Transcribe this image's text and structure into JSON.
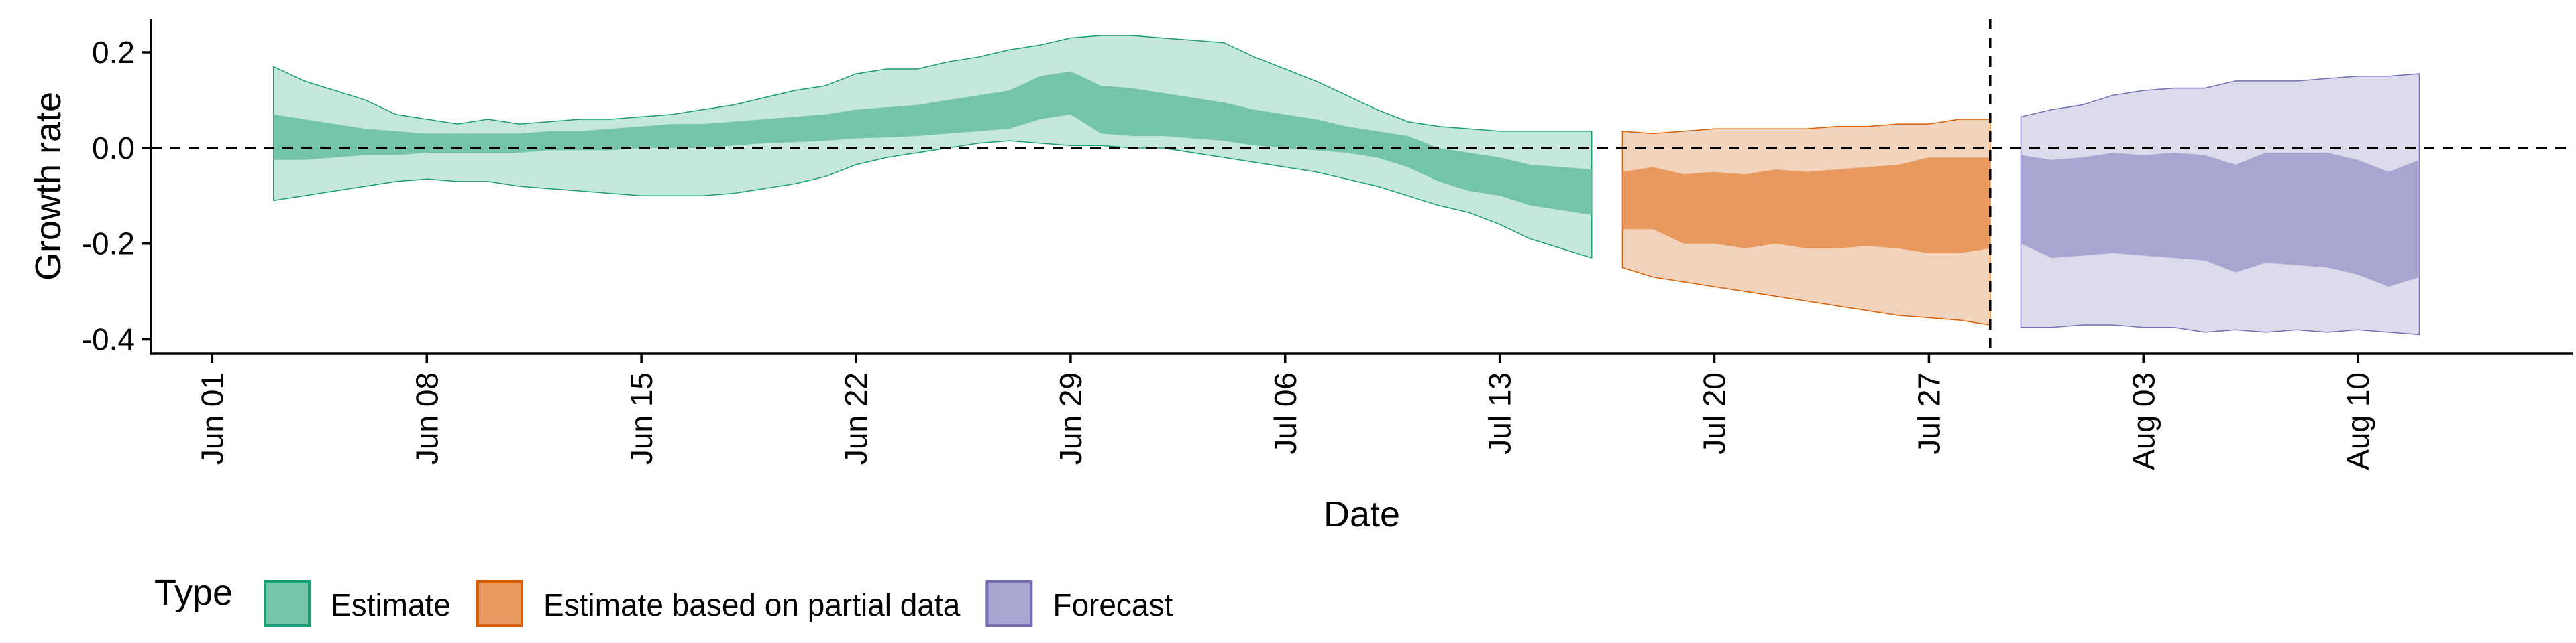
{
  "chart_data": {
    "type": "area",
    "xlabel": "Date",
    "ylabel": "Growth rate",
    "ylim": [
      -0.43,
      0.27
    ],
    "xlim": [
      "2020-05-30",
      "2020-08-17"
    ],
    "grid": false,
    "reference_lines": {
      "horizontal": 0.0,
      "vertical": "2020-07-29"
    },
    "y_ticks": [
      {
        "value": 0.2,
        "label": "0.2"
      },
      {
        "value": 0.0,
        "label": "0.0"
      },
      {
        "value": -0.2,
        "label": "-0.2"
      },
      {
        "value": -0.4,
        "label": "-0.4"
      }
    ],
    "x_ticks": [
      {
        "date": "2020-06-01",
        "label": "Jun 01"
      },
      {
        "date": "2020-06-08",
        "label": "Jun 08"
      },
      {
        "date": "2020-06-15",
        "label": "Jun 15"
      },
      {
        "date": "2020-06-22",
        "label": "Jun 22"
      },
      {
        "date": "2020-06-29",
        "label": "Jun 29"
      },
      {
        "date": "2020-07-06",
        "label": "Jul 06"
      },
      {
        "date": "2020-07-13",
        "label": "Jul 13"
      },
      {
        "date": "2020-07-20",
        "label": "Jul 20"
      },
      {
        "date": "2020-07-27",
        "label": "Jul 27"
      },
      {
        "date": "2020-08-03",
        "label": "Aug 03"
      },
      {
        "date": "2020-08-10",
        "label": "Aug 10"
      }
    ],
    "legend": {
      "title": "Type",
      "position": "bottom-left",
      "entries": [
        {
          "label": "Estimate",
          "fill": "#73c4a8",
          "stroke": "#1b9e77"
        },
        {
          "label": "Estimate based on partial data",
          "fill": "#e89a5e",
          "stroke": "#d95f02"
        },
        {
          "label": "Forecast",
          "fill": "#a9a5d1",
          "stroke": "#7570b3"
        }
      ]
    },
    "series": [
      {
        "name": "Estimate",
        "outer_fill": "#c5e7dc",
        "inner_fill": "#73c4a8",
        "stroke": "#1b9e77",
        "points": [
          {
            "x": "2020-06-03",
            "lo90": -0.11,
            "hi90": 0.17,
            "lo50": -0.025,
            "hi50": 0.07
          },
          {
            "x": "2020-06-04",
            "lo90": -0.1,
            "hi90": 0.14,
            "lo50": -0.025,
            "hi50": 0.06
          },
          {
            "x": "2020-06-05",
            "lo90": -0.09,
            "hi90": 0.12,
            "lo50": -0.02,
            "hi50": 0.05
          },
          {
            "x": "2020-06-06",
            "lo90": -0.08,
            "hi90": 0.1,
            "lo50": -0.015,
            "hi50": 0.04
          },
          {
            "x": "2020-06-07",
            "lo90": -0.07,
            "hi90": 0.07,
            "lo50": -0.015,
            "hi50": 0.035
          },
          {
            "x": "2020-06-08",
            "lo90": -0.065,
            "hi90": 0.06,
            "lo50": -0.01,
            "hi50": 0.03
          },
          {
            "x": "2020-06-09",
            "lo90": -0.07,
            "hi90": 0.05,
            "lo50": -0.01,
            "hi50": 0.03
          },
          {
            "x": "2020-06-10",
            "lo90": -0.07,
            "hi90": 0.06,
            "lo50": -0.01,
            "hi50": 0.03
          },
          {
            "x": "2020-06-11",
            "lo90": -0.08,
            "hi90": 0.05,
            "lo50": -0.01,
            "hi50": 0.03
          },
          {
            "x": "2020-06-12",
            "lo90": -0.085,
            "hi90": 0.055,
            "lo50": -0.005,
            "hi50": 0.035
          },
          {
            "x": "2020-06-13",
            "lo90": -0.09,
            "hi90": 0.06,
            "lo50": -0.005,
            "hi50": 0.035
          },
          {
            "x": "2020-06-14",
            "lo90": -0.095,
            "hi90": 0.06,
            "lo50": -0.005,
            "hi50": 0.04
          },
          {
            "x": "2020-06-15",
            "lo90": -0.1,
            "hi90": 0.065,
            "lo50": 0.0,
            "hi50": 0.045
          },
          {
            "x": "2020-06-16",
            "lo90": -0.1,
            "hi90": 0.07,
            "lo50": 0.0,
            "hi50": 0.05
          },
          {
            "x": "2020-06-17",
            "lo90": -0.1,
            "hi90": 0.08,
            "lo50": 0.0,
            "hi50": 0.05
          },
          {
            "x": "2020-06-18",
            "lo90": -0.095,
            "hi90": 0.09,
            "lo50": 0.005,
            "hi50": 0.055
          },
          {
            "x": "2020-06-19",
            "lo90": -0.085,
            "hi90": 0.105,
            "lo50": 0.01,
            "hi50": 0.06
          },
          {
            "x": "2020-06-20",
            "lo90": -0.075,
            "hi90": 0.12,
            "lo50": 0.012,
            "hi50": 0.065
          },
          {
            "x": "2020-06-21",
            "lo90": -0.06,
            "hi90": 0.13,
            "lo50": 0.015,
            "hi50": 0.07
          },
          {
            "x": "2020-06-22",
            "lo90": -0.035,
            "hi90": 0.155,
            "lo50": 0.02,
            "hi50": 0.08
          },
          {
            "x": "2020-06-23",
            "lo90": -0.02,
            "hi90": 0.165,
            "lo50": 0.022,
            "hi50": 0.085
          },
          {
            "x": "2020-06-24",
            "lo90": -0.01,
            "hi90": 0.165,
            "lo50": 0.025,
            "hi50": 0.09
          },
          {
            "x": "2020-06-25",
            "lo90": 0.0,
            "hi90": 0.18,
            "lo50": 0.03,
            "hi50": 0.1
          },
          {
            "x": "2020-06-26",
            "lo90": 0.01,
            "hi90": 0.19,
            "lo50": 0.035,
            "hi50": 0.11
          },
          {
            "x": "2020-06-27",
            "lo90": 0.015,
            "hi90": 0.205,
            "lo50": 0.04,
            "hi50": 0.12
          },
          {
            "x": "2020-06-28",
            "lo90": 0.01,
            "hi90": 0.215,
            "lo50": 0.06,
            "hi50": 0.15
          },
          {
            "x": "2020-06-29",
            "lo90": 0.005,
            "hi90": 0.23,
            "lo50": 0.07,
            "hi50": 0.16
          },
          {
            "x": "2020-06-30",
            "lo90": 0.005,
            "hi90": 0.235,
            "lo50": 0.03,
            "hi50": 0.13
          },
          {
            "x": "2020-07-01",
            "lo90": 0.0,
            "hi90": 0.235,
            "lo50": 0.025,
            "hi50": 0.125
          },
          {
            "x": "2020-07-02",
            "lo90": 0.0,
            "hi90": 0.23,
            "lo50": 0.025,
            "hi50": 0.115
          },
          {
            "x": "2020-07-03",
            "lo90": -0.01,
            "hi90": 0.225,
            "lo50": 0.02,
            "hi50": 0.105
          },
          {
            "x": "2020-07-04",
            "lo90": -0.02,
            "hi90": 0.22,
            "lo50": 0.015,
            "hi50": 0.095
          },
          {
            "x": "2020-07-05",
            "lo90": -0.03,
            "hi90": 0.19,
            "lo50": 0.005,
            "hi50": 0.08
          },
          {
            "x": "2020-07-06",
            "lo90": -0.04,
            "hi90": 0.165,
            "lo50": 0.0,
            "hi50": 0.07
          },
          {
            "x": "2020-07-07",
            "lo90": -0.05,
            "hi90": 0.14,
            "lo50": -0.005,
            "hi50": 0.06
          },
          {
            "x": "2020-07-08",
            "lo90": -0.065,
            "hi90": 0.11,
            "lo50": -0.01,
            "hi50": 0.045
          },
          {
            "x": "2020-07-09",
            "lo90": -0.08,
            "hi90": 0.08,
            "lo50": -0.02,
            "hi50": 0.035
          },
          {
            "x": "2020-07-10",
            "lo90": -0.1,
            "hi90": 0.055,
            "lo50": -0.04,
            "hi50": 0.025
          },
          {
            "x": "2020-07-11",
            "lo90": -0.12,
            "hi90": 0.045,
            "lo50": -0.07,
            "hi50": 0.0
          },
          {
            "x": "2020-07-12",
            "lo90": -0.135,
            "hi90": 0.04,
            "lo50": -0.09,
            "hi50": -0.01
          },
          {
            "x": "2020-07-13",
            "lo90": -0.16,
            "hi90": 0.035,
            "lo50": -0.1,
            "hi50": -0.02
          },
          {
            "x": "2020-07-14",
            "lo90": -0.19,
            "hi90": 0.035,
            "lo50": -0.12,
            "hi50": -0.035
          },
          {
            "x": "2020-07-15",
            "lo90": -0.21,
            "hi90": 0.035,
            "lo50": -0.13,
            "hi50": -0.04
          },
          {
            "x": "2020-07-16",
            "lo90": -0.23,
            "hi90": 0.035,
            "lo50": -0.14,
            "hi50": -0.045
          }
        ]
      },
      {
        "name": "Estimate based on partial data",
        "outer_fill": "#f4d3bd",
        "inner_fill": "#e89a5e",
        "stroke": "#d95f02",
        "points": [
          {
            "x": "2020-07-17",
            "lo90": -0.25,
            "hi90": 0.035,
            "lo50": -0.17,
            "hi50": -0.05
          },
          {
            "x": "2020-07-18",
            "lo90": -0.27,
            "hi90": 0.03,
            "lo50": -0.17,
            "hi50": -0.04
          },
          {
            "x": "2020-07-19",
            "lo90": -0.28,
            "hi90": 0.035,
            "lo50": -0.2,
            "hi50": -0.055
          },
          {
            "x": "2020-07-20",
            "lo90": -0.29,
            "hi90": 0.04,
            "lo50": -0.2,
            "hi50": -0.05
          },
          {
            "x": "2020-07-21",
            "lo90": -0.3,
            "hi90": 0.04,
            "lo50": -0.21,
            "hi50": -0.055
          },
          {
            "x": "2020-07-22",
            "lo90": -0.31,
            "hi90": 0.04,
            "lo50": -0.2,
            "hi50": -0.045
          },
          {
            "x": "2020-07-23",
            "lo90": -0.32,
            "hi90": 0.04,
            "lo50": -0.21,
            "hi50": -0.05
          },
          {
            "x": "2020-07-24",
            "lo90": -0.33,
            "hi90": 0.045,
            "lo50": -0.21,
            "hi50": -0.045
          },
          {
            "x": "2020-07-25",
            "lo90": -0.34,
            "hi90": 0.045,
            "lo50": -0.205,
            "hi50": -0.04
          },
          {
            "x": "2020-07-26",
            "lo90": -0.35,
            "hi90": 0.05,
            "lo50": -0.21,
            "hi50": -0.035
          },
          {
            "x": "2020-07-27",
            "lo90": -0.355,
            "hi90": 0.05,
            "lo50": -0.22,
            "hi50": -0.02
          },
          {
            "x": "2020-07-28",
            "lo90": -0.36,
            "hi90": 0.06,
            "lo50": -0.22,
            "hi50": -0.02
          },
          {
            "x": "2020-07-29",
            "lo90": -0.37,
            "hi90": 0.06,
            "lo50": -0.21,
            "hi50": -0.02
          }
        ]
      },
      {
        "name": "Forecast",
        "outer_fill": "#dcdbec",
        "inner_fill": "#a9a5d1",
        "stroke": "#7570b3",
        "points": [
          {
            "x": "2020-07-30",
            "lo90": -0.375,
            "hi90": 0.065,
            "lo50": -0.2,
            "hi50": -0.015
          },
          {
            "x": "2020-07-31",
            "lo90": -0.375,
            "hi90": 0.08,
            "lo50": -0.23,
            "hi50": -0.025
          },
          {
            "x": "2020-08-01",
            "lo90": -0.37,
            "hi90": 0.09,
            "lo50": -0.225,
            "hi50": -0.02
          },
          {
            "x": "2020-08-02",
            "lo90": -0.37,
            "hi90": 0.11,
            "lo50": -0.22,
            "hi50": -0.01
          },
          {
            "x": "2020-08-03",
            "lo90": -0.375,
            "hi90": 0.12,
            "lo50": -0.225,
            "hi50": -0.015
          },
          {
            "x": "2020-08-04",
            "lo90": -0.375,
            "hi90": 0.125,
            "lo50": -0.23,
            "hi50": -0.01
          },
          {
            "x": "2020-08-05",
            "lo90": -0.385,
            "hi90": 0.125,
            "lo50": -0.235,
            "hi50": -0.015
          },
          {
            "x": "2020-08-06",
            "lo90": -0.38,
            "hi90": 0.14,
            "lo50": -0.26,
            "hi50": -0.035
          },
          {
            "x": "2020-08-07",
            "lo90": -0.385,
            "hi90": 0.14,
            "lo50": -0.24,
            "hi50": -0.01
          },
          {
            "x": "2020-08-08",
            "lo90": -0.38,
            "hi90": 0.14,
            "lo50": -0.245,
            "hi50": -0.01
          },
          {
            "x": "2020-08-09",
            "lo90": -0.385,
            "hi90": 0.145,
            "lo50": -0.25,
            "hi50": -0.01
          },
          {
            "x": "2020-08-10",
            "lo90": -0.38,
            "hi90": 0.15,
            "lo50": -0.265,
            "hi50": -0.025
          },
          {
            "x": "2020-08-11",
            "lo90": -0.385,
            "hi90": 0.15,
            "lo50": -0.29,
            "hi50": -0.05
          },
          {
            "x": "2020-08-12",
            "lo90": -0.39,
            "hi90": 0.155,
            "lo50": -0.27,
            "hi50": -0.025
          }
        ]
      }
    ]
  }
}
